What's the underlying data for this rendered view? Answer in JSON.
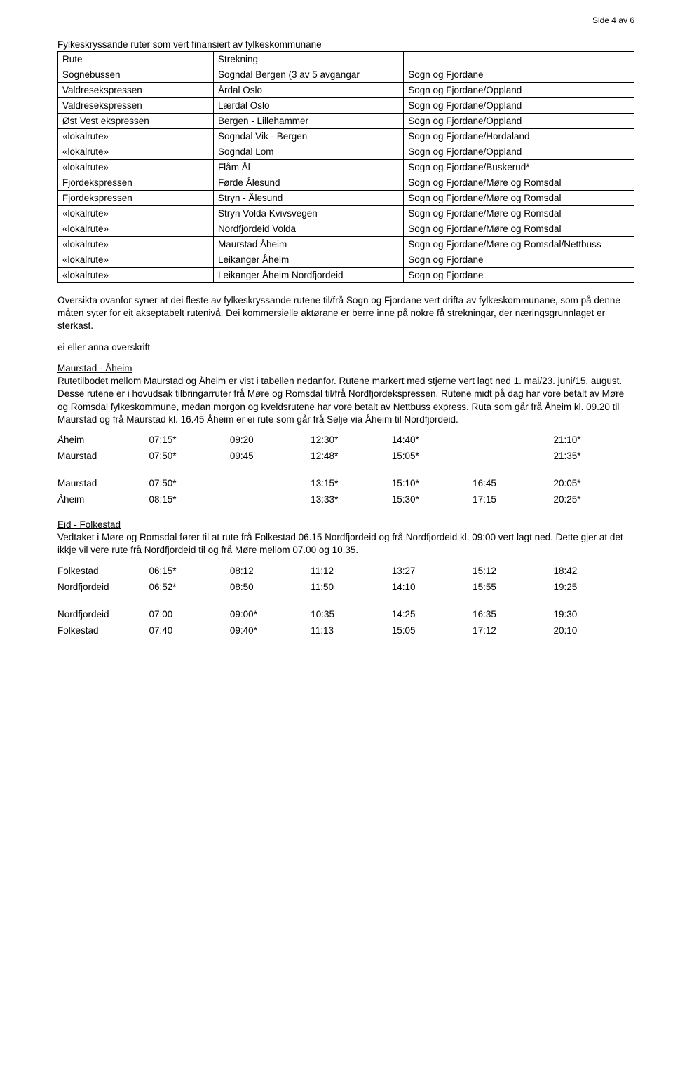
{
  "pageNumber": "Side 4 av 6",
  "section1Title": "Fylkeskryssande ruter som vert finansiert av fylkeskommunane",
  "routesHeader": {
    "c1": "Rute",
    "c2": "Strekning",
    "c3": ""
  },
  "routes": [
    {
      "c1": "Sognebussen",
      "c2": "Sogndal Bergen (3 av 5 avgangar",
      "c3": "Sogn og Fjordane"
    },
    {
      "c1": "Valdresekspressen",
      "c2": "Årdal Oslo",
      "c3": "Sogn og Fjordane/Oppland"
    },
    {
      "c1": "Valdresekspressen",
      "c2": "Lærdal Oslo",
      "c3": "Sogn og Fjordane/Oppland"
    },
    {
      "c1": "Øst Vest ekspressen",
      "c2": "Bergen - Lillehammer",
      "c3": "Sogn og Fjordane/Oppland"
    },
    {
      "c1": "«lokalrute»",
      "c2": "Sogndal Vik - Bergen",
      "c3": "Sogn og Fjordane/Hordaland"
    },
    {
      "c1": "«lokalrute»",
      "c2": "Sogndal Lom",
      "c3": "Sogn og Fjordane/Oppland"
    },
    {
      "c1": "«lokalrute»",
      "c2": "Flåm Ål",
      "c3": "Sogn og Fjordane/Buskerud*"
    },
    {
      "c1": "Fjordekspressen",
      "c2": "Førde Ålesund",
      "c3": "Sogn og Fjordane/Møre og Romsdal"
    },
    {
      "c1": "Fjordekspressen",
      "c2": "Stryn - Ålesund",
      "c3": "Sogn og Fjordane/Møre og Romsdal"
    },
    {
      "c1": "«lokalrute»",
      "c2": "Stryn Volda Kvivsvegen",
      "c3": "Sogn og Fjordane/Møre og Romsdal"
    },
    {
      "c1": "«lokalrute»",
      "c2": "Nordfjordeid Volda",
      "c3": "Sogn og Fjordane/Møre og Romsdal"
    },
    {
      "c1": "«lokalrute»",
      "c2": "Maurstad Åheim",
      "c3": "Sogn og Fjordane/Møre og Romsdal/Nettbuss"
    },
    {
      "c1": "«lokalrute»",
      "c2": "Leikanger Åheim",
      "c3": "Sogn og Fjordane"
    },
    {
      "c1": "«lokalrute»",
      "c2": "Leikanger Åheim Nordfjordeid",
      "c3": "Sogn og Fjordane"
    }
  ],
  "para1": "Oversikta ovanfor syner at dei fleste av fylkeskryssande rutene til/frå Sogn og Fjordane vert drifta av fylkeskommunane, som på denne måten syter for eit akseptabelt rutenivå. Dei kommersielle aktørane er berre inne på nokre få strekningar, der næringsgrunnlaget er sterkast.",
  "para2": "ei eller anna overskrift",
  "heading1": "Maurstad - Åheim",
  "para3": "Rutetilbodet mellom Maurstad og Åheim er vist i tabellen nedanfor. Rutene markert med stjerne vert lagt ned 1. mai/23. juni/15. august. Desse rutene er i hovudsak tilbringarruter frå Møre og Romsdal til/frå Nordfjordekspressen. Rutene midt på dag har vore betalt av Møre og Romsdal fylkeskommune, medan morgon og kveldsrutene har vore betalt av Nettbuss express. Ruta som går frå Åheim kl. 09.20 til Maurstad og frå Maurstad kl. 16.45 Åheim er ei rute som går frå Selje via Åheim til Nordfjordeid.",
  "tt1a": [
    {
      "label": "Åheim",
      "t": [
        "07:15*",
        "09:20",
        "12:30*",
        "14:40*",
        "",
        "21:10*"
      ]
    },
    {
      "label": "Maurstad",
      "t": [
        "07:50*",
        "09:45",
        "12:48*",
        "15:05*",
        "",
        "21:35*"
      ]
    }
  ],
  "tt1b": [
    {
      "label": "Maurstad",
      "t": [
        "07:50*",
        "",
        "13:15*",
        "15:10*",
        "16:45",
        "20:05*"
      ]
    },
    {
      "label": "Åheim",
      "t": [
        "08:15*",
        "",
        "13:33*",
        "15:30*",
        "17:15",
        "20:25*"
      ]
    }
  ],
  "heading2": "Eid - Folkestad",
  "para4": "Vedtaket i Møre og Romsdal fører til at rute frå Folkestad 06.15 Nordfjordeid og frå Nordfjordeid kl. 09:00 vert lagt ned. Dette gjer at det ikkje vil vere rute frå Nordfjordeid til og frå Møre mellom 07.00 og 10.35.",
  "tt2a": [
    {
      "label": "Folkestad",
      "t": [
        "06:15*",
        "08:12",
        "11:12",
        "13:27",
        "15:12",
        "18:42"
      ]
    },
    {
      "label": "Nordfjordeid",
      "t": [
        "06:52*",
        "08:50",
        "11:50",
        "14:10",
        "15:55",
        "19:25"
      ]
    }
  ],
  "tt2b": [
    {
      "label": "Nordfjordeid",
      "t": [
        "07:00",
        "09:00*",
        "10:35",
        "14:25",
        "16:35",
        "19:30"
      ]
    },
    {
      "label": "Folkestad",
      "t": [
        "07:40",
        "09:40*",
        "11:13",
        "15:05",
        "17:12",
        "20:10"
      ]
    }
  ],
  "ttColWidth": "115px"
}
